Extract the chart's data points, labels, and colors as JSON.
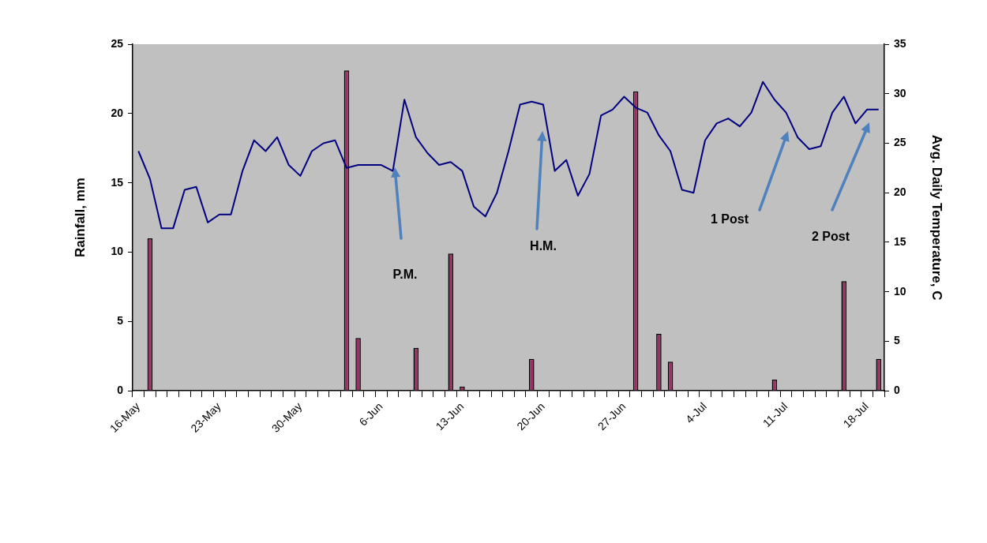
{
  "chart_data": {
    "type": "bar",
    "categories": [
      "16-May",
      null,
      null,
      null,
      null,
      null,
      null,
      "23-May",
      null,
      null,
      null,
      null,
      null,
      null,
      "30-May",
      null,
      null,
      null,
      null,
      null,
      null,
      "6-Jun",
      null,
      null,
      null,
      null,
      null,
      null,
      "13-Jun",
      null,
      null,
      null,
      null,
      null,
      null,
      "20-Jun",
      null,
      null,
      null,
      null,
      null,
      null,
      "27-Jun",
      null,
      null,
      null,
      null,
      null,
      null,
      "4-Jul",
      null,
      null,
      null,
      null,
      null,
      null,
      "11-Jul",
      null,
      null,
      null,
      null,
      null,
      null,
      "18-Jul",
      null
    ],
    "series": [
      {
        "color": "#993366",
        "values": [
          null,
          11,
          null,
          null,
          null,
          null,
          null,
          null,
          null,
          null,
          null,
          null,
          null,
          null,
          null,
          null,
          null,
          null,
          23.1,
          3.8,
          null,
          null,
          null,
          null,
          3.1,
          null,
          null,
          9.9,
          0.3,
          null,
          null,
          null,
          null,
          null,
          2.3,
          null,
          null,
          null,
          null,
          null,
          null,
          null,
          null,
          21.6,
          null,
          4.1,
          2.1,
          null,
          null,
          null,
          null,
          null,
          null,
          null,
          null,
          0.8,
          null,
          null,
          null,
          null,
          null,
          7.9,
          null,
          null,
          2.3
        ]
      },
      {
        "type": "line",
        "axis": "y2",
        "color": "#000080",
        "values": [
          24.2,
          21.4,
          16.4,
          16.4,
          20.3,
          20.6,
          17.0,
          17.8,
          17.8,
          22.2,
          25.3,
          24.2,
          25.6,
          22.8,
          21.7,
          24.2,
          25.0,
          25.3,
          22.5,
          22.8,
          22.8,
          22.8,
          22.2,
          29.4,
          25.6,
          24.0,
          22.8,
          23.1,
          22.2,
          18.6,
          17.6,
          20.0,
          24.2,
          28.9,
          29.2,
          28.9,
          22.2,
          23.3,
          19.7,
          21.9,
          27.8,
          28.4,
          29.7,
          28.6,
          28.1,
          25.8,
          24.2,
          20.3,
          20.0,
          25.3,
          27.0,
          27.5,
          26.7,
          28.1,
          31.2,
          29.4,
          28.1,
          25.6,
          24.4,
          24.7,
          28.1,
          29.7,
          27.0,
          28.4,
          28.4
        ]
      }
    ],
    "ylabel": "Rainfall, mm",
    "y2label": "Avg. Daily Temperature, C",
    "ylim": [
      0,
      25
    ],
    "yticks": [
      0,
      5,
      10,
      15,
      20,
      25
    ],
    "y2lim": [
      0,
      35
    ],
    "y2ticks": [
      0,
      5,
      10,
      15,
      20,
      25,
      30,
      35
    ],
    "annotations": [
      "P.M.",
      "H.M.",
      "1 Post",
      "2 Post"
    ],
    "grid": false,
    "legend": false,
    "marker": "none"
  }
}
